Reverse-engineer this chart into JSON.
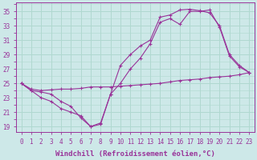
{
  "background_color": "#cde8e8",
  "grid_color": "#b0d8d0",
  "line_color": "#993399",
  "marker_color": "#993399",
  "xlabel": "Windchill (Refroidissement éolien,°C)",
  "ylabel_ticks": [
    19,
    21,
    23,
    25,
    27,
    29,
    31,
    33,
    35
  ],
  "xlim": [
    -0.5,
    23.5
  ],
  "ylim": [
    18.2,
    36.2
  ],
  "line1_x": [
    0,
    1,
    2,
    3,
    4,
    5,
    6,
    7,
    8,
    9,
    10,
    11,
    12,
    13,
    14,
    15,
    16,
    17,
    18,
    19,
    20,
    21,
    22,
    23
  ],
  "line1_y": [
    25.0,
    24.0,
    23.0,
    22.5,
    21.5,
    21.0,
    20.5,
    19.0,
    19.3,
    23.5,
    27.5,
    29.0,
    30.2,
    31.0,
    34.2,
    34.5,
    35.2,
    35.3,
    35.1,
    34.8,
    33.0,
    29.0,
    27.5,
    26.5
  ],
  "line2_x": [
    0,
    1,
    2,
    3,
    4,
    5,
    6,
    7,
    8,
    9,
    10,
    11,
    12,
    13,
    14,
    15,
    16,
    17,
    18,
    19,
    20,
    21,
    22,
    23
  ],
  "line2_y": [
    25.0,
    24.0,
    23.8,
    23.5,
    22.5,
    21.8,
    20.2,
    19.0,
    19.5,
    23.5,
    25.0,
    27.0,
    28.5,
    30.5,
    33.5,
    34.0,
    33.2,
    35.0,
    35.0,
    35.2,
    32.8,
    28.8,
    27.3,
    26.5
  ],
  "line3_x": [
    0,
    1,
    2,
    3,
    4,
    5,
    6,
    7,
    8,
    9,
    10,
    11,
    12,
    13,
    14,
    15,
    16,
    17,
    18,
    19,
    20,
    21,
    22,
    23
  ],
  "line3_y": [
    25.0,
    24.2,
    24.0,
    24.1,
    24.2,
    24.2,
    24.3,
    24.5,
    24.5,
    24.5,
    24.6,
    24.7,
    24.8,
    24.9,
    25.0,
    25.2,
    25.4,
    25.5,
    25.6,
    25.8,
    25.9,
    26.0,
    26.2,
    26.5
  ],
  "axis_label_fontsize": 6.5,
  "tick_fontsize": 5.5
}
